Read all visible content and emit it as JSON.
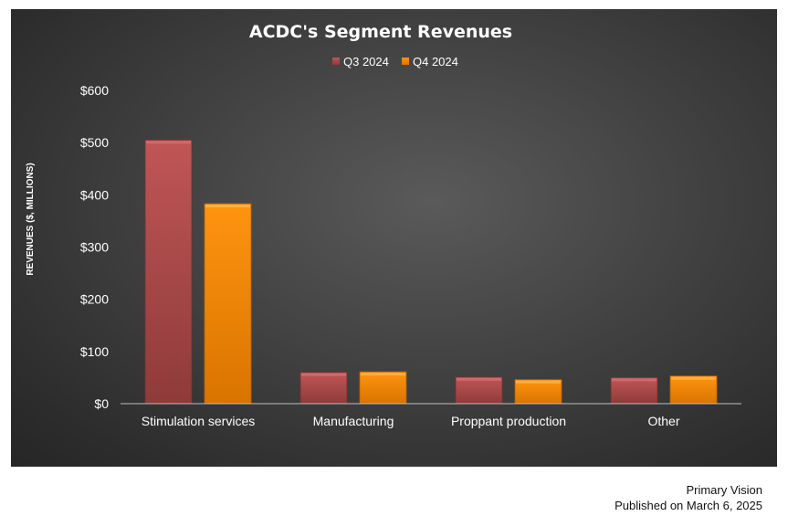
{
  "chart_data": {
    "type": "bar",
    "title": "ACDC's Segment Revenues",
    "ylabel": "REVENUES ($, MILLIONS)",
    "xlabel": "",
    "categories": [
      "Stimulation services",
      "Manufacturing",
      "Proppant production",
      "Other"
    ],
    "series": [
      {
        "name": "Q3 2024",
        "values": [
          505,
          60,
          51,
          50
        ],
        "color": "#b34a4a"
      },
      {
        "name": "Q4 2024",
        "values": [
          383,
          61,
          46,
          53
        ],
        "color": "#ff8c00"
      }
    ],
    "ylim": [
      0,
      600
    ],
    "yticks": [
      {
        "value": 0,
        "label": "$0"
      },
      {
        "value": 100,
        "label": "$100"
      },
      {
        "value": 200,
        "label": "$200"
      },
      {
        "value": 300,
        "label": "$300"
      },
      {
        "value": 400,
        "label": "$400"
      },
      {
        "value": 500,
        "label": "$500"
      },
      {
        "value": 600,
        "label": "$600"
      }
    ],
    "grid": false,
    "legend": "top-center"
  },
  "footer": {
    "source": "Primary Vision",
    "published": "Published on March 6, 2025"
  }
}
